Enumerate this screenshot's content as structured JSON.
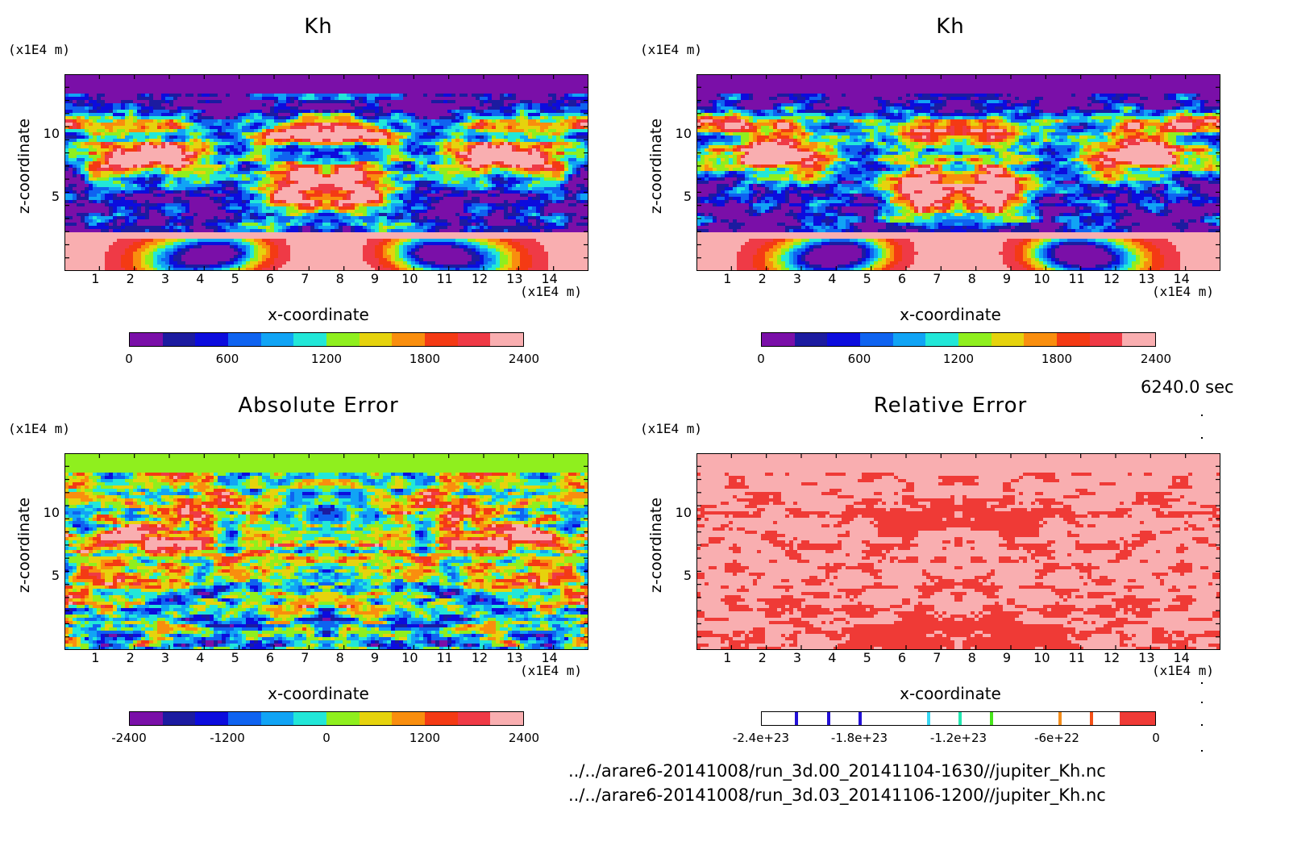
{
  "chart_data": [
    {
      "type": "heatmap",
      "title": "Kh",
      "xlabel": "x-coordinate",
      "ylabel": "z-coordinate",
      "x_unit": "(x1E4 m)",
      "y_unit": "(x1E4 m)",
      "xticks": [
        "1",
        "2",
        "3",
        "4",
        "5",
        "6",
        "7",
        "8",
        "9",
        "10",
        "11",
        "12",
        "13",
        "14"
      ],
      "yticks": [
        "5",
        "10"
      ],
      "xlim": [
        0,
        15
      ],
      "ylim": [
        0,
        15
      ],
      "colorbar": {
        "labels": [
          "0",
          "600",
          "1200",
          "1800",
          "2400"
        ],
        "range": [
          0,
          2400
        ],
        "levels": 12
      },
      "field": "kh_run_00"
    },
    {
      "type": "heatmap",
      "title": "Kh",
      "xlabel": "x-coordinate",
      "ylabel": "z-coordinate",
      "x_unit": "(x1E4 m)",
      "y_unit": "(x1E4 m)",
      "xticks": [
        "1",
        "2",
        "3",
        "4",
        "5",
        "6",
        "7",
        "8",
        "9",
        "10",
        "11",
        "12",
        "13",
        "14"
      ],
      "yticks": [
        "5",
        "10"
      ],
      "xlim": [
        0,
        15
      ],
      "ylim": [
        0,
        15
      ],
      "colorbar": {
        "labels": [
          "0",
          "600",
          "1200",
          "1800",
          "2400"
        ],
        "range": [
          0,
          2400
        ],
        "levels": 12
      },
      "field": "kh_run_03"
    },
    {
      "type": "heatmap",
      "title": "Absolute Error",
      "xlabel": "x-coordinate",
      "ylabel": "z-coordinate",
      "x_unit": "(x1E4 m)",
      "y_unit": "(x1E4 m)",
      "xticks": [
        "1",
        "2",
        "3",
        "4",
        "5",
        "6",
        "7",
        "8",
        "9",
        "10",
        "11",
        "12",
        "13",
        "14"
      ],
      "yticks": [
        "5",
        "10"
      ],
      "xlim": [
        0,
        15
      ],
      "ylim": [
        0,
        15
      ],
      "colorbar": {
        "labels": [
          "-2400",
          "-1200",
          "0",
          "1200",
          "2400"
        ],
        "range": [
          -2400,
          2400
        ],
        "levels": 12
      },
      "field": "abs_error"
    },
    {
      "type": "heatmap",
      "title": "Relative Error",
      "xlabel": "x-coordinate",
      "ylabel": "z-coordinate",
      "x_unit": "(x1E4 m)",
      "y_unit": "(x1E4 m)",
      "xticks": [
        "1",
        "2",
        "3",
        "4",
        "5",
        "6",
        "7",
        "8",
        "9",
        "10",
        "11",
        "12",
        "13",
        "14"
      ],
      "yticks": [
        "5",
        "10"
      ],
      "xlim": [
        0,
        15
      ],
      "ylim": [
        0,
        15
      ],
      "colorbar": {
        "labels": [
          "-2.4e+23",
          "-1.8e+23",
          "-1.2e+23",
          "-6e+22",
          "0"
        ],
        "range": [
          -2.4e+23,
          0
        ]
      },
      "field": "rel_error"
    }
  ],
  "colors": {
    "scale12": [
      "#7a0fa8",
      "#1c1ba0",
      "#0c0cdd",
      "#0f63f0",
      "#11a4f5",
      "#22e7d8",
      "#8fef1e",
      "#e6d30d",
      "#f98e0e",
      "#f43a14",
      "#ef3a46",
      "#f9aeb0"
    ],
    "rel_markers": [
      "#2310d6",
      "#2310d6",
      "#2310d6",
      "#37d7f3",
      "#22e7b0",
      "#47e51b",
      "#f48d1a",
      "#f45018"
    ],
    "rel_fill": "#ef3a36",
    "rel_bg": "#f9aeb0"
  },
  "footer": {
    "time": "6240.0 sec",
    "file1": "../../arare6-20141008/run_3d.00_20141104-1630//jupiter_Kh.nc",
    "file2": "../../arare6-20141008/run_3d.03_20141106-1200//jupiter_Kh.nc"
  }
}
